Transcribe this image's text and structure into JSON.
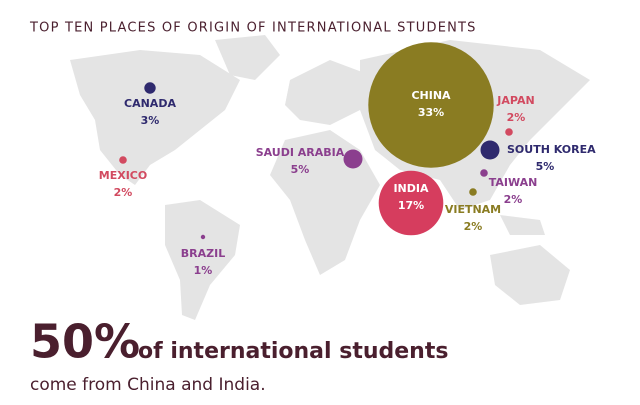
{
  "chart_data": {
    "type": "bubble-map",
    "title": "TOP TEN PLACES OF ORIGIN OF INTERNATIONAL STUDENTS",
    "categories": [
      "CANADA",
      "MEXICO",
      "BRAZIL",
      "SAUDI ARABIA",
      "CHINA",
      "INDIA",
      "JAPAN",
      "SOUTH KOREA",
      "TAIWAN",
      "VIETNAM"
    ],
    "values": [
      3,
      2,
      1,
      5,
      33,
      17,
      2,
      5,
      2,
      2
    ],
    "value_labels": [
      "3%",
      "2%",
      "1%",
      "5%",
      "33%",
      "17%",
      "2%",
      "5%",
      "2%",
      "2%"
    ],
    "colors": [
      "#2f2a6e",
      "#d24a60",
      "#8b3f8e",
      "#8b3f8e",
      "#8a7c22",
      "#d63d5e",
      "#d24a60",
      "#2f2a6e",
      "#8b3f8e",
      "#8a7c22"
    ]
  },
  "headline": {
    "big": "50%",
    "rest": "of international students",
    "subline": "come from China and India."
  }
}
